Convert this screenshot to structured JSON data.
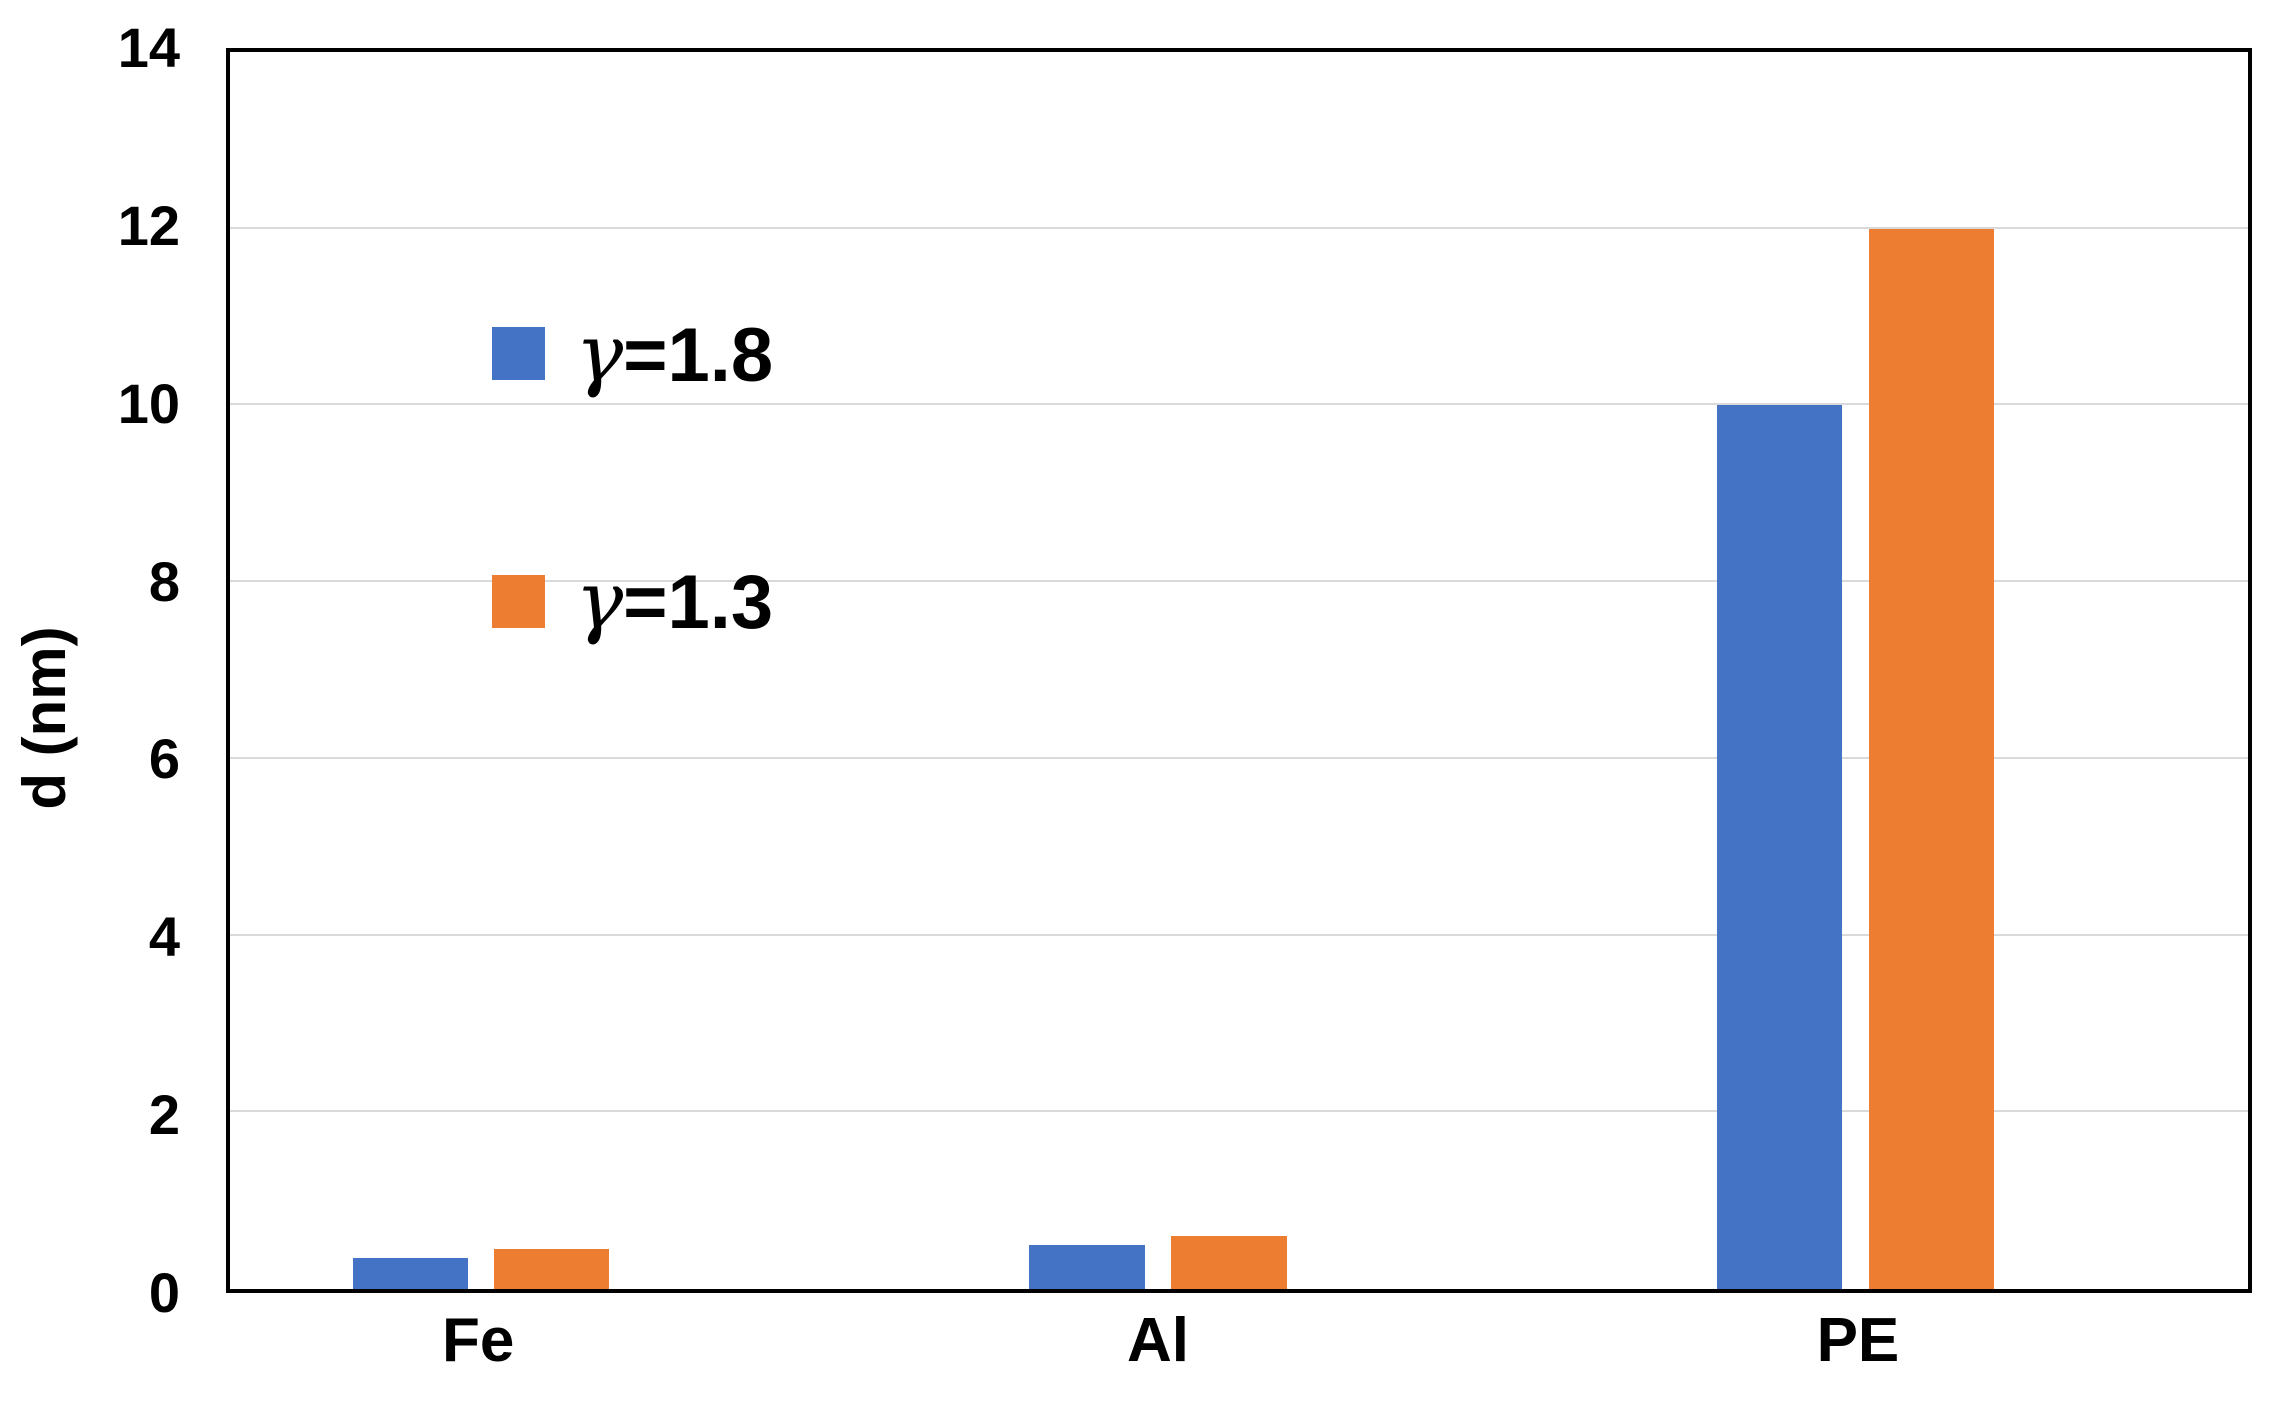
{
  "chart_data": {
    "type": "bar",
    "title": "",
    "categories": [
      "Fe",
      "Al",
      "PE"
    ],
    "series": [
      {
        "name": "γ=1.8",
        "symbol": "γ",
        "rest": "=1.8",
        "color": "#4472C4",
        "values": [
          0.35,
          0.5,
          10
        ]
      },
      {
        "name": "γ=1.3",
        "symbol": "γ",
        "rest": "=1.3",
        "color": "#ED7D31",
        "values": [
          0.45,
          0.6,
          12
        ]
      }
    ],
    "xlabel": "",
    "ylabel": "d (nm)",
    "ylim": [
      0,
      14
    ],
    "yticks": [
      0,
      2,
      4,
      6,
      8,
      10,
      12,
      14
    ],
    "grid": true,
    "gridline_color": "#D9D9D9",
    "axis_color": "#000000",
    "background_color": "#FFFFFF",
    "legend_position": "inside-upper-left"
  }
}
